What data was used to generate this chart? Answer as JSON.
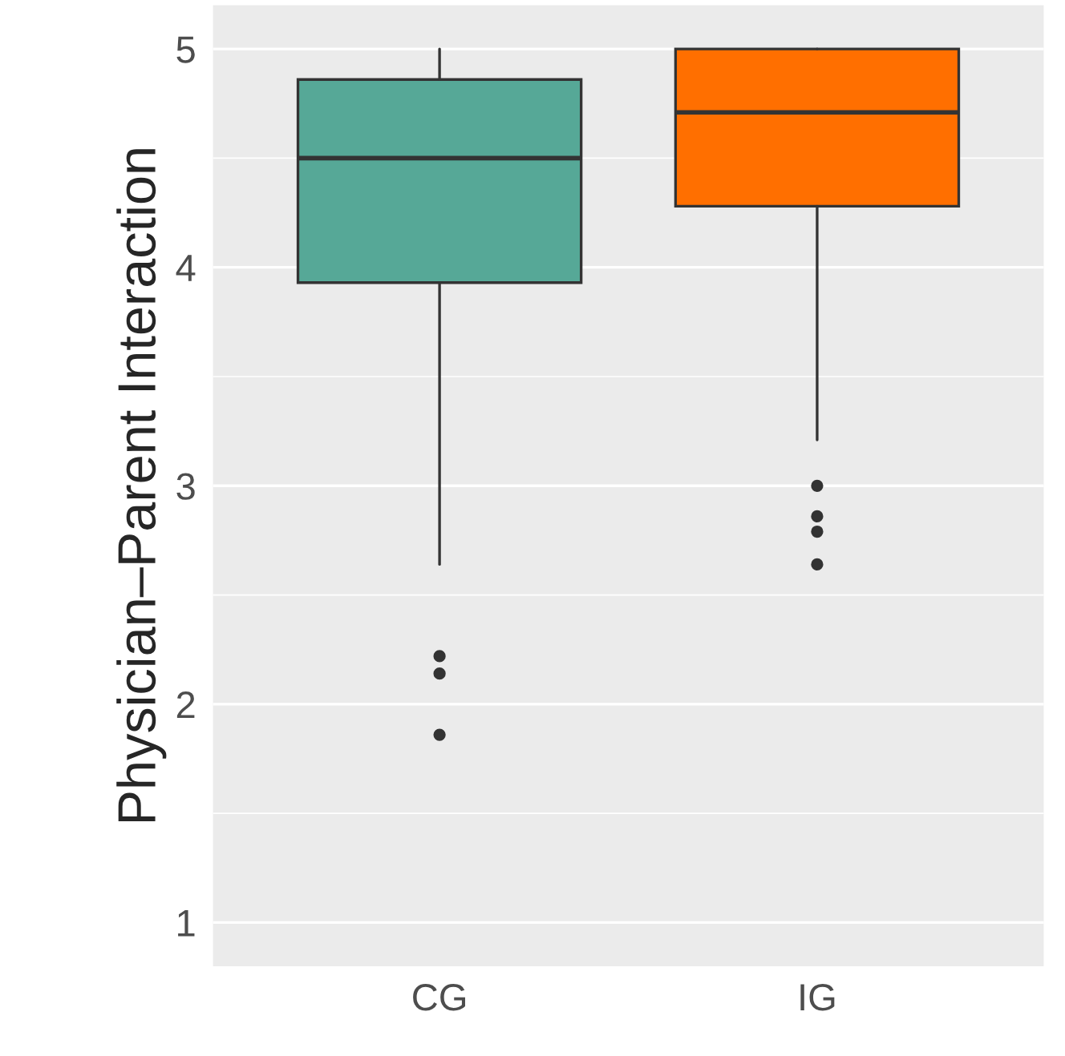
{
  "chart_data": {
    "type": "box",
    "ylabel": "Physician–Parent Interaction",
    "categories": [
      "CG",
      "IG"
    ],
    "colors": [
      "#56a897",
      "#ff6f00"
    ],
    "boxes": [
      {
        "low": 2.64,
        "q1": 3.93,
        "median": 4.5,
        "q3": 4.86,
        "high": 5.0,
        "outliers": [
          2.22,
          2.14,
          1.86
        ]
      },
      {
        "low": 3.21,
        "q1": 4.28,
        "median": 4.71,
        "q3": 5.0,
        "high": 5.0,
        "outliers": [
          3.0,
          2.86,
          2.79,
          2.64
        ]
      }
    ],
    "ylim": [
      0.8,
      5.2
    ],
    "yticks": [
      1,
      2,
      3,
      4,
      5
    ],
    "grid": "y"
  }
}
